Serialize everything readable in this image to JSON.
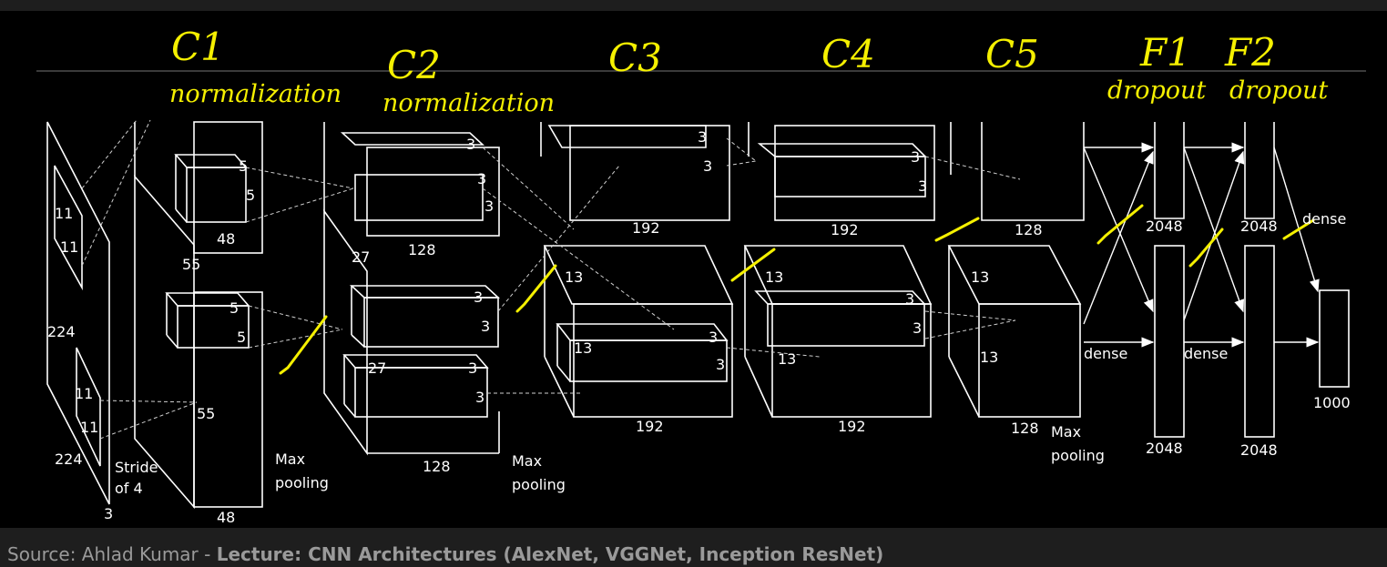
{
  "diagram": {
    "handwritten": {
      "c1": "C1",
      "c1_note": "normalization",
      "c2": "C2",
      "c2_note": "normalization",
      "c3": "C3",
      "c4": "C4",
      "c5": "C5",
      "f1": "F1",
      "f1_note": "dropout",
      "f2": "F2",
      "f2_note": "dropout"
    },
    "labels": {
      "in_11a": "11",
      "in_11b": "11",
      "in_224a": "224",
      "in_11c": "11",
      "in_11d": "11",
      "in_224b": "224",
      "in_3": "3",
      "stride": "Stride",
      "of4": "of 4",
      "c1_5a": "5",
      "c1_5b": "5",
      "c1_48a": "48",
      "c1_55a": "55",
      "c1_5c": "5",
      "c1_5d": "5",
      "c1_55b": "55",
      "c1_48b": "48",
      "mp1_a": "Max",
      "mp1_b": "pooling",
      "c2_3a": "3",
      "c2_3b": "3",
      "c2_3c": "3",
      "c2_128a": "128",
      "c2_27a": "27",
      "c2_3d": "3",
      "c2_3e": "3",
      "c2_27b": "27",
      "c2_3f": "3",
      "c2_3g": "3",
      "c2_128b": "128",
      "mp2_a": "Max",
      "mp2_b": "pooling",
      "c3_3a": "3",
      "c3_3b": "3",
      "c3_192a": "192",
      "c3_13a": "13",
      "c3_3c": "3",
      "c3_13b": "13",
      "c3_3d": "3",
      "c3_192b": "192",
      "c4_3a": "3",
      "c4_3b": "3",
      "c4_192a": "192",
      "c4_13a": "13",
      "c4_3c": "3",
      "c4_3d": "3",
      "c4_13b": "13",
      "c4_192b": "192",
      "c5_128a": "128",
      "c5_13a": "13",
      "c5_13b": "13",
      "c5_128b": "128",
      "mp3_a": "Max",
      "mp3_b": "pooling",
      "f_2048a": "2048",
      "f_2048b": "2048",
      "f_2048c": "2048",
      "f_2048d": "2048",
      "dense1": "dense",
      "dense2": "dense",
      "dense3": "dense",
      "out_1000": "1000"
    }
  },
  "caption": {
    "prefix": "Source:",
    "author": " Ahlad Kumar - ",
    "title": "Lecture: CNN Architectures (AlexNet, VGGNet, Inception ResNet)"
  },
  "colors": {
    "handwriting": "#f5f000",
    "lines": "#ffffff",
    "background": "#000000"
  }
}
